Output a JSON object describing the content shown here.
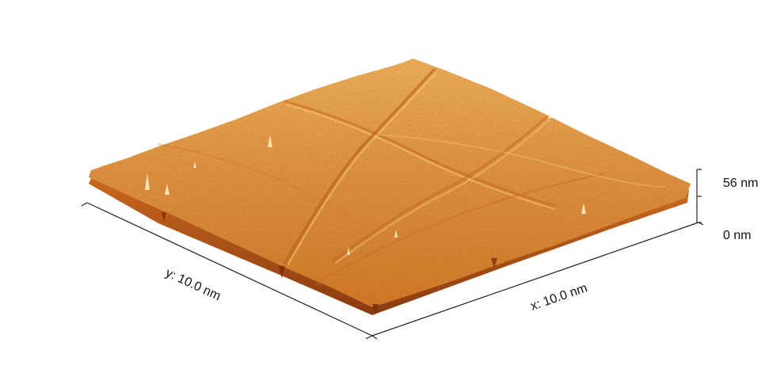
{
  "axes": {
    "x_label": "x: 10.0 nm",
    "y_label": "y: 10.0 nm",
    "z_max_label": "56 nm",
    "z_min_label": "0 nm"
  },
  "colors": {
    "surface_low": "#9a3f10",
    "surface_mid": "#e08e36",
    "surface_high": "#f7c777",
    "axis": "#222222"
  }
}
